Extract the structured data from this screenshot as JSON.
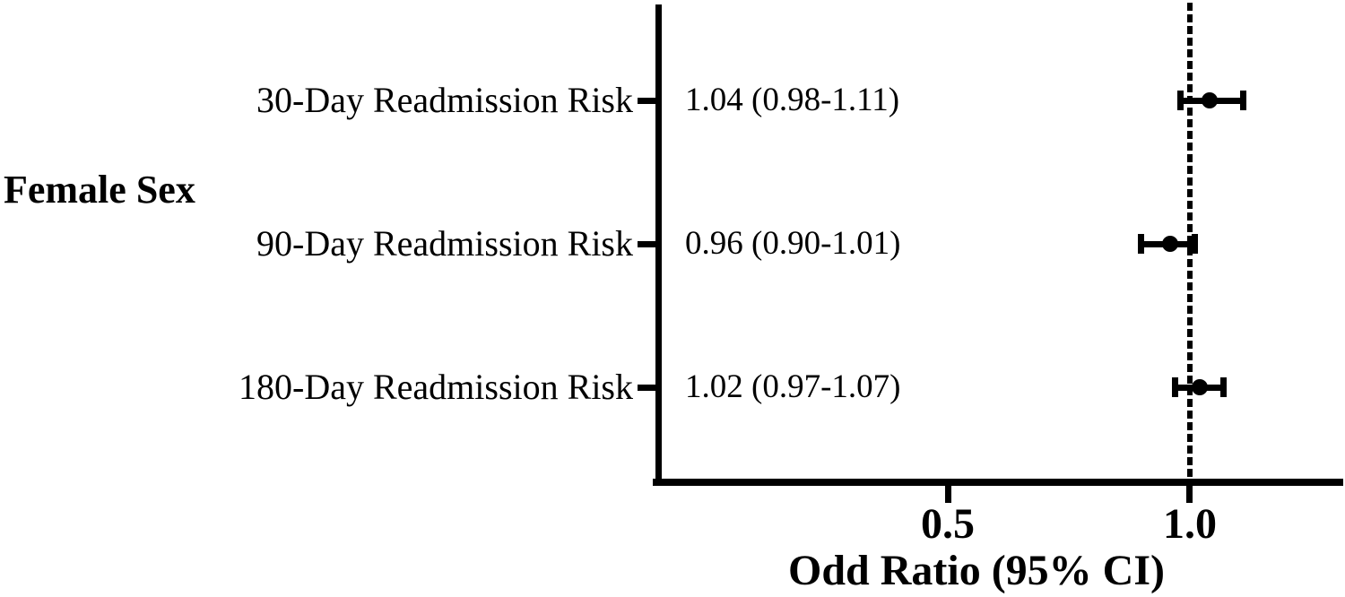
{
  "colors": {
    "ink": "#000000",
    "background": "#ffffff"
  },
  "chart_data": {
    "type": "forest",
    "group_label": "Female Sex",
    "xlabel": "Odd Ratio (95% CI)",
    "xlim": [
      -0.104,
      1.315
    ],
    "reference_line": 1.0,
    "grid": false,
    "x_ticks": [
      {
        "value": 0.5,
        "label": "0.5"
      },
      {
        "value": 1.0,
        "label": "1.0"
      }
    ],
    "rows": [
      {
        "label": "30-Day Readmission Risk",
        "estimate_label": "1.04 (0.98-1.11)",
        "or": 1.04,
        "ci_low": 0.98,
        "ci_high": 1.11
      },
      {
        "label": "90-Day Readmission Risk",
        "estimate_label": "0.96 (0.90-1.01)",
        "or": 0.96,
        "ci_low": 0.9,
        "ci_high": 1.01
      },
      {
        "label": "180-Day Readmission Risk",
        "estimate_label": "1.02 (0.97-1.07)",
        "or": 1.02,
        "ci_low": 0.97,
        "ci_high": 1.07
      }
    ]
  }
}
